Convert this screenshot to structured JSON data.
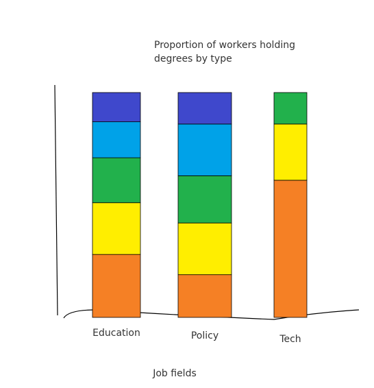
{
  "chart_data": {
    "type": "stacked-bar",
    "title": "Proportion of workers holding degrees by type",
    "x_label": "Job fields",
    "categories": [
      "Education",
      "Policy",
      "Tech"
    ],
    "series": [
      {
        "color": "#f58025",
        "values": [
          28,
          19,
          61
        ]
      },
      {
        "color": "#ffee00",
        "values": [
          23,
          23,
          25
        ]
      },
      {
        "color": "#22b14c",
        "values": [
          20,
          21,
          14
        ]
      },
      {
        "color": "#00a2e8",
        "values": [
          16,
          23,
          0
        ]
      },
      {
        "color": "#3f48cc",
        "values": [
          13,
          14,
          0
        ]
      }
    ],
    "ylim": [
      0,
      100
    ]
  }
}
